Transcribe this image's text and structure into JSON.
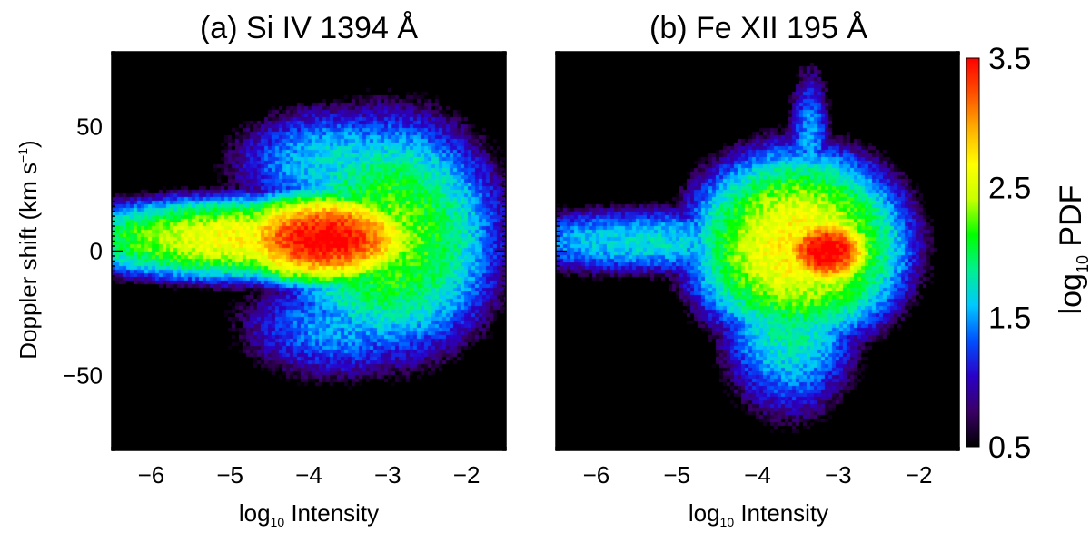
{
  "chart_data": [
    {
      "type": "heatmap",
      "panel": "a",
      "title": "(a) Si IV 1394 Å",
      "xlabel_base": "log",
      "xlabel_sub": "10",
      "xlabel_rest": " Intensity",
      "ylabel_main": "Doppler shift (km s",
      "ylabel_sup": "−1",
      "ylabel_end": ")",
      "xlim": [
        -6.5,
        -1.5
      ],
      "ylim": [
        -80,
        80
      ],
      "xticks": [
        -6,
        -5,
        -4,
        -3,
        -2
      ],
      "xtick_labels": [
        "−6",
        "−5",
        "−4",
        "−3",
        "−2"
      ],
      "yticks": [
        50,
        0,
        -50
      ],
      "ytick_labels": [
        "50",
        "0",
        "−50"
      ],
      "components": [
        {
          "x": -3.8,
          "y": 5,
          "sx": 0.95,
          "sy": 14,
          "amp": 3.55,
          "falloff": 0.25
        },
        {
          "x": -4.6,
          "y": 5,
          "sx": 1.55,
          "sy": 10,
          "amp": 2.7,
          "falloff": 0.12
        },
        {
          "x": -3.0,
          "y": 6,
          "sx": 0.9,
          "sy": 30,
          "amp": 2.3,
          "falloff": 0.12
        },
        {
          "x": -3.6,
          "y": 35,
          "sx": 0.9,
          "sy": 15,
          "amp": 1.7,
          "falloff": 0.1
        },
        {
          "x": -3.6,
          "y": -30,
          "sx": 0.9,
          "sy": 15,
          "amp": 1.5,
          "falloff": 0.1
        }
      ]
    },
    {
      "type": "heatmap",
      "panel": "b",
      "title": "(b) Fe XII 195 Å",
      "xlabel_base": "log",
      "xlabel_sub": "10",
      "xlabel_rest": " Intensity",
      "xlim": [
        -6.5,
        -1.5
      ],
      "ylim": [
        -80,
        80
      ],
      "xticks": [
        -6,
        -5,
        -4,
        -3,
        -2
      ],
      "xtick_labels": [
        "−6",
        "−5",
        "−4",
        "−3",
        "−2"
      ],
      "components": [
        {
          "x": -3.15,
          "y": 0,
          "sx": 0.5,
          "sy": 12,
          "amp": 3.6,
          "falloff": 0.3
        },
        {
          "x": -3.5,
          "y": 2,
          "sx": 0.85,
          "sy": 24,
          "amp": 2.75,
          "falloff": 0.14
        },
        {
          "x": -3.6,
          "y": -25,
          "sx": 0.55,
          "sy": 25,
          "amp": 1.9,
          "falloff": 0.1
        },
        {
          "x": -5.4,
          "y": 4,
          "sx": 1.2,
          "sy": 8,
          "amp": 1.7,
          "falloff": 0.08
        },
        {
          "x": -3.35,
          "y": 45,
          "sx": 0.18,
          "sy": 20,
          "amp": 1.5,
          "falloff": 0.1
        }
      ]
    }
  ],
  "colorbar": {
    "label_base": "log",
    "label_sub": "10",
    "label_rest": " PDF",
    "range": [
      0.5,
      3.5
    ],
    "ticks": [
      3.5,
      2.5,
      1.5,
      0.5
    ],
    "tick_labels": [
      "3.5",
      "2.5",
      "1.5",
      "0.5"
    ],
    "colormap": [
      "#000000",
      "#3a0066",
      "#2a00c8",
      "#0050ff",
      "#00c8ff",
      "#00f090",
      "#00ff00",
      "#c8ff00",
      "#ffff00",
      "#ffb000",
      "#ff5000",
      "#ff0000"
    ]
  }
}
